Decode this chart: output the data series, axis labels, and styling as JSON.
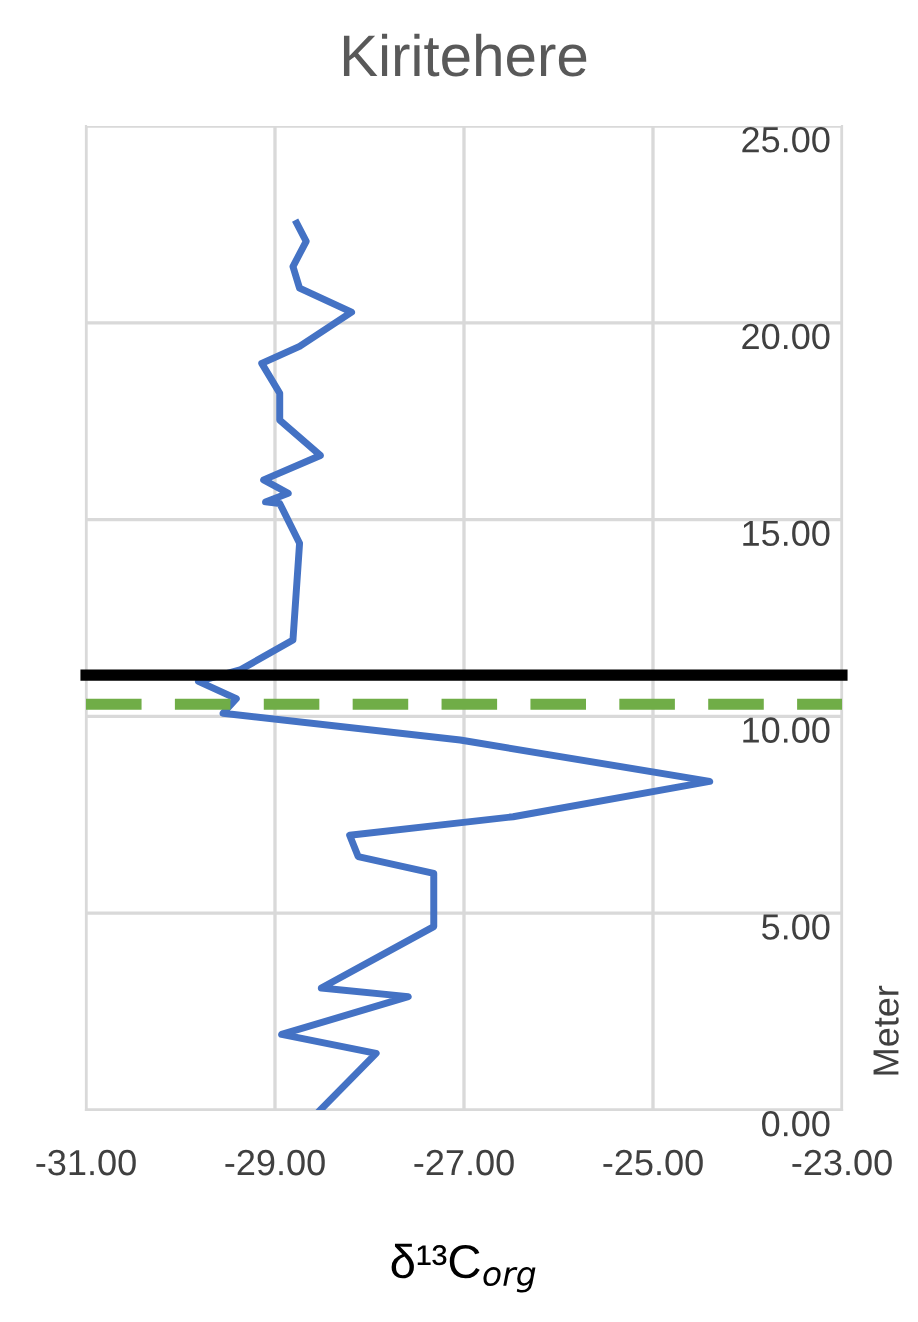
{
  "chart_data": {
    "type": "line",
    "title": "Kiritehere",
    "xlabel": "δ¹³C$_{org}$",
    "ylabel": "Meter",
    "x": [
      -28.52,
      -27.93,
      -28.93,
      -27.59,
      -28.51,
      -27.32,
      -27.32,
      -28.12,
      -28.21,
      -26.48,
      -24.4,
      -27.04,
      -29.55,
      -29.41,
      -29.81,
      -29.37,
      -28.81,
      -28.74,
      -28.95,
      -29.1,
      -28.86,
      -29.12,
      -28.52,
      -28.95,
      -28.95,
      -29.14,
      -28.74,
      -28.19,
      -28.74,
      -28.81,
      -28.67,
      -28.77
    ],
    "series": [
      {
        "color": "#4472c4",
        "values": [
          0.0,
          1.44,
          1.92,
          2.88,
          3.1,
          4.66,
          6.01,
          6.44,
          6.98,
          7.45,
          8.35,
          9.4,
          10.08,
          10.45,
          10.89,
          11.18,
          11.94,
          14.4,
          15.41,
          15.45,
          15.67,
          16.01,
          16.63,
          17.53,
          18.21,
          18.97,
          19.4,
          20.27,
          20.88,
          21.43,
          22.07,
          22.53
        ]
      }
    ],
    "xlim": [
      -31,
      -23
    ],
    "xticks": [
      {
        "value": -31,
        "label": "-31.00"
      },
      {
        "value": -29,
        "label": "-29.00"
      },
      {
        "value": -27,
        "label": "-27.00"
      },
      {
        "value": -25,
        "label": "-25.00"
      },
      {
        "value": -23,
        "label": "-23.00"
      }
    ],
    "ylim": [
      0,
      25
    ],
    "yticks": [
      {
        "value": 0,
        "label": "0.00"
      },
      {
        "value": 5,
        "label": "5.00"
      },
      {
        "value": 10,
        "label": "10.00"
      },
      {
        "value": 15,
        "label": "15.00"
      },
      {
        "value": 20,
        "label": "20.00"
      },
      {
        "value": 25,
        "label": "25.00"
      }
    ],
    "ref_lines": [
      {
        "axis": "y",
        "value": 11.05,
        "color": "#000000",
        "line_style": "solid"
      },
      {
        "axis": "y",
        "value": 10.31,
        "color": "#70ad47",
        "line_style": "dashed"
      }
    ],
    "grid": true
  }
}
